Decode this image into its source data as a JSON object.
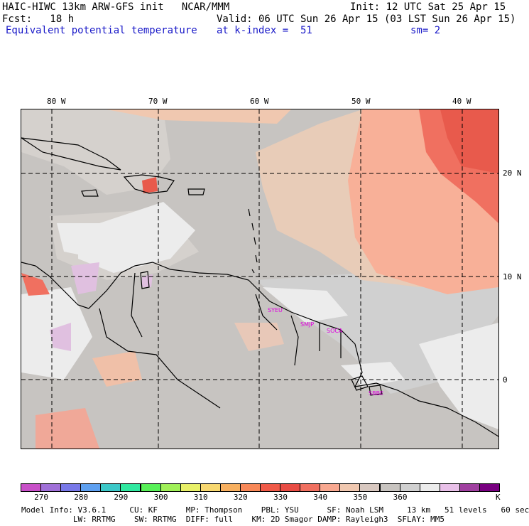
{
  "header": {
    "model": "HAIC-HIWC 13km ARW-GFS init   NCAR/MMM",
    "init": "Init: 12 UTC Sat 25 Apr 15",
    "fcst": "Fcst:   18 h",
    "valid": "Valid: 06 UTC Sun 26 Apr 15 (03 LST Sun 26 Apr 15)",
    "field": "Equivalent potential temperature",
    "level": "at k-index =  51",
    "smooth": "sm= 2"
  },
  "map": {
    "lon_labels": [
      "80 W",
      "70 W",
      "60 W",
      "50 W",
      "40 W"
    ],
    "lat_labels": [
      "20 N",
      "10 N",
      "0"
    ],
    "stations": [
      "SYEU",
      "SMJP",
      "SOCA",
      "SBBE"
    ]
  },
  "colorbar": {
    "colors": [
      "#c850c8",
      "#a070d8",
      "#7878e8",
      "#5ea0f0",
      "#3cc8c8",
      "#30e8a0",
      "#58f058",
      "#a0f058",
      "#e8f068",
      "#f8d870",
      "#f8b060",
      "#f88858",
      "#f05a48",
      "#e84c44",
      "#f07060",
      "#f8a890",
      "#f0c8b0",
      "#d8c8c0",
      "#c8c4c0",
      "#d0d0d0",
      "#ececec",
      "#e8c0e8",
      "#a040a0",
      "#780080"
    ],
    "ticks": [
      "270",
      "280",
      "290",
      "300",
      "310",
      "320",
      "330",
      "340",
      "350",
      "360"
    ],
    "unit": "K"
  },
  "footer": {
    "line1": "Model Info: V3.6.1     CU: KF      MP: Thompson    PBL: YSU      SF: Noah LSM     13 km   51 levels   60 sec",
    "line2": "           LW: RRTMG    SW: RRTMG  DIFF: full    KM: 2D Smagor DAMP: Rayleigh3  SFLAY: MM5"
  }
}
